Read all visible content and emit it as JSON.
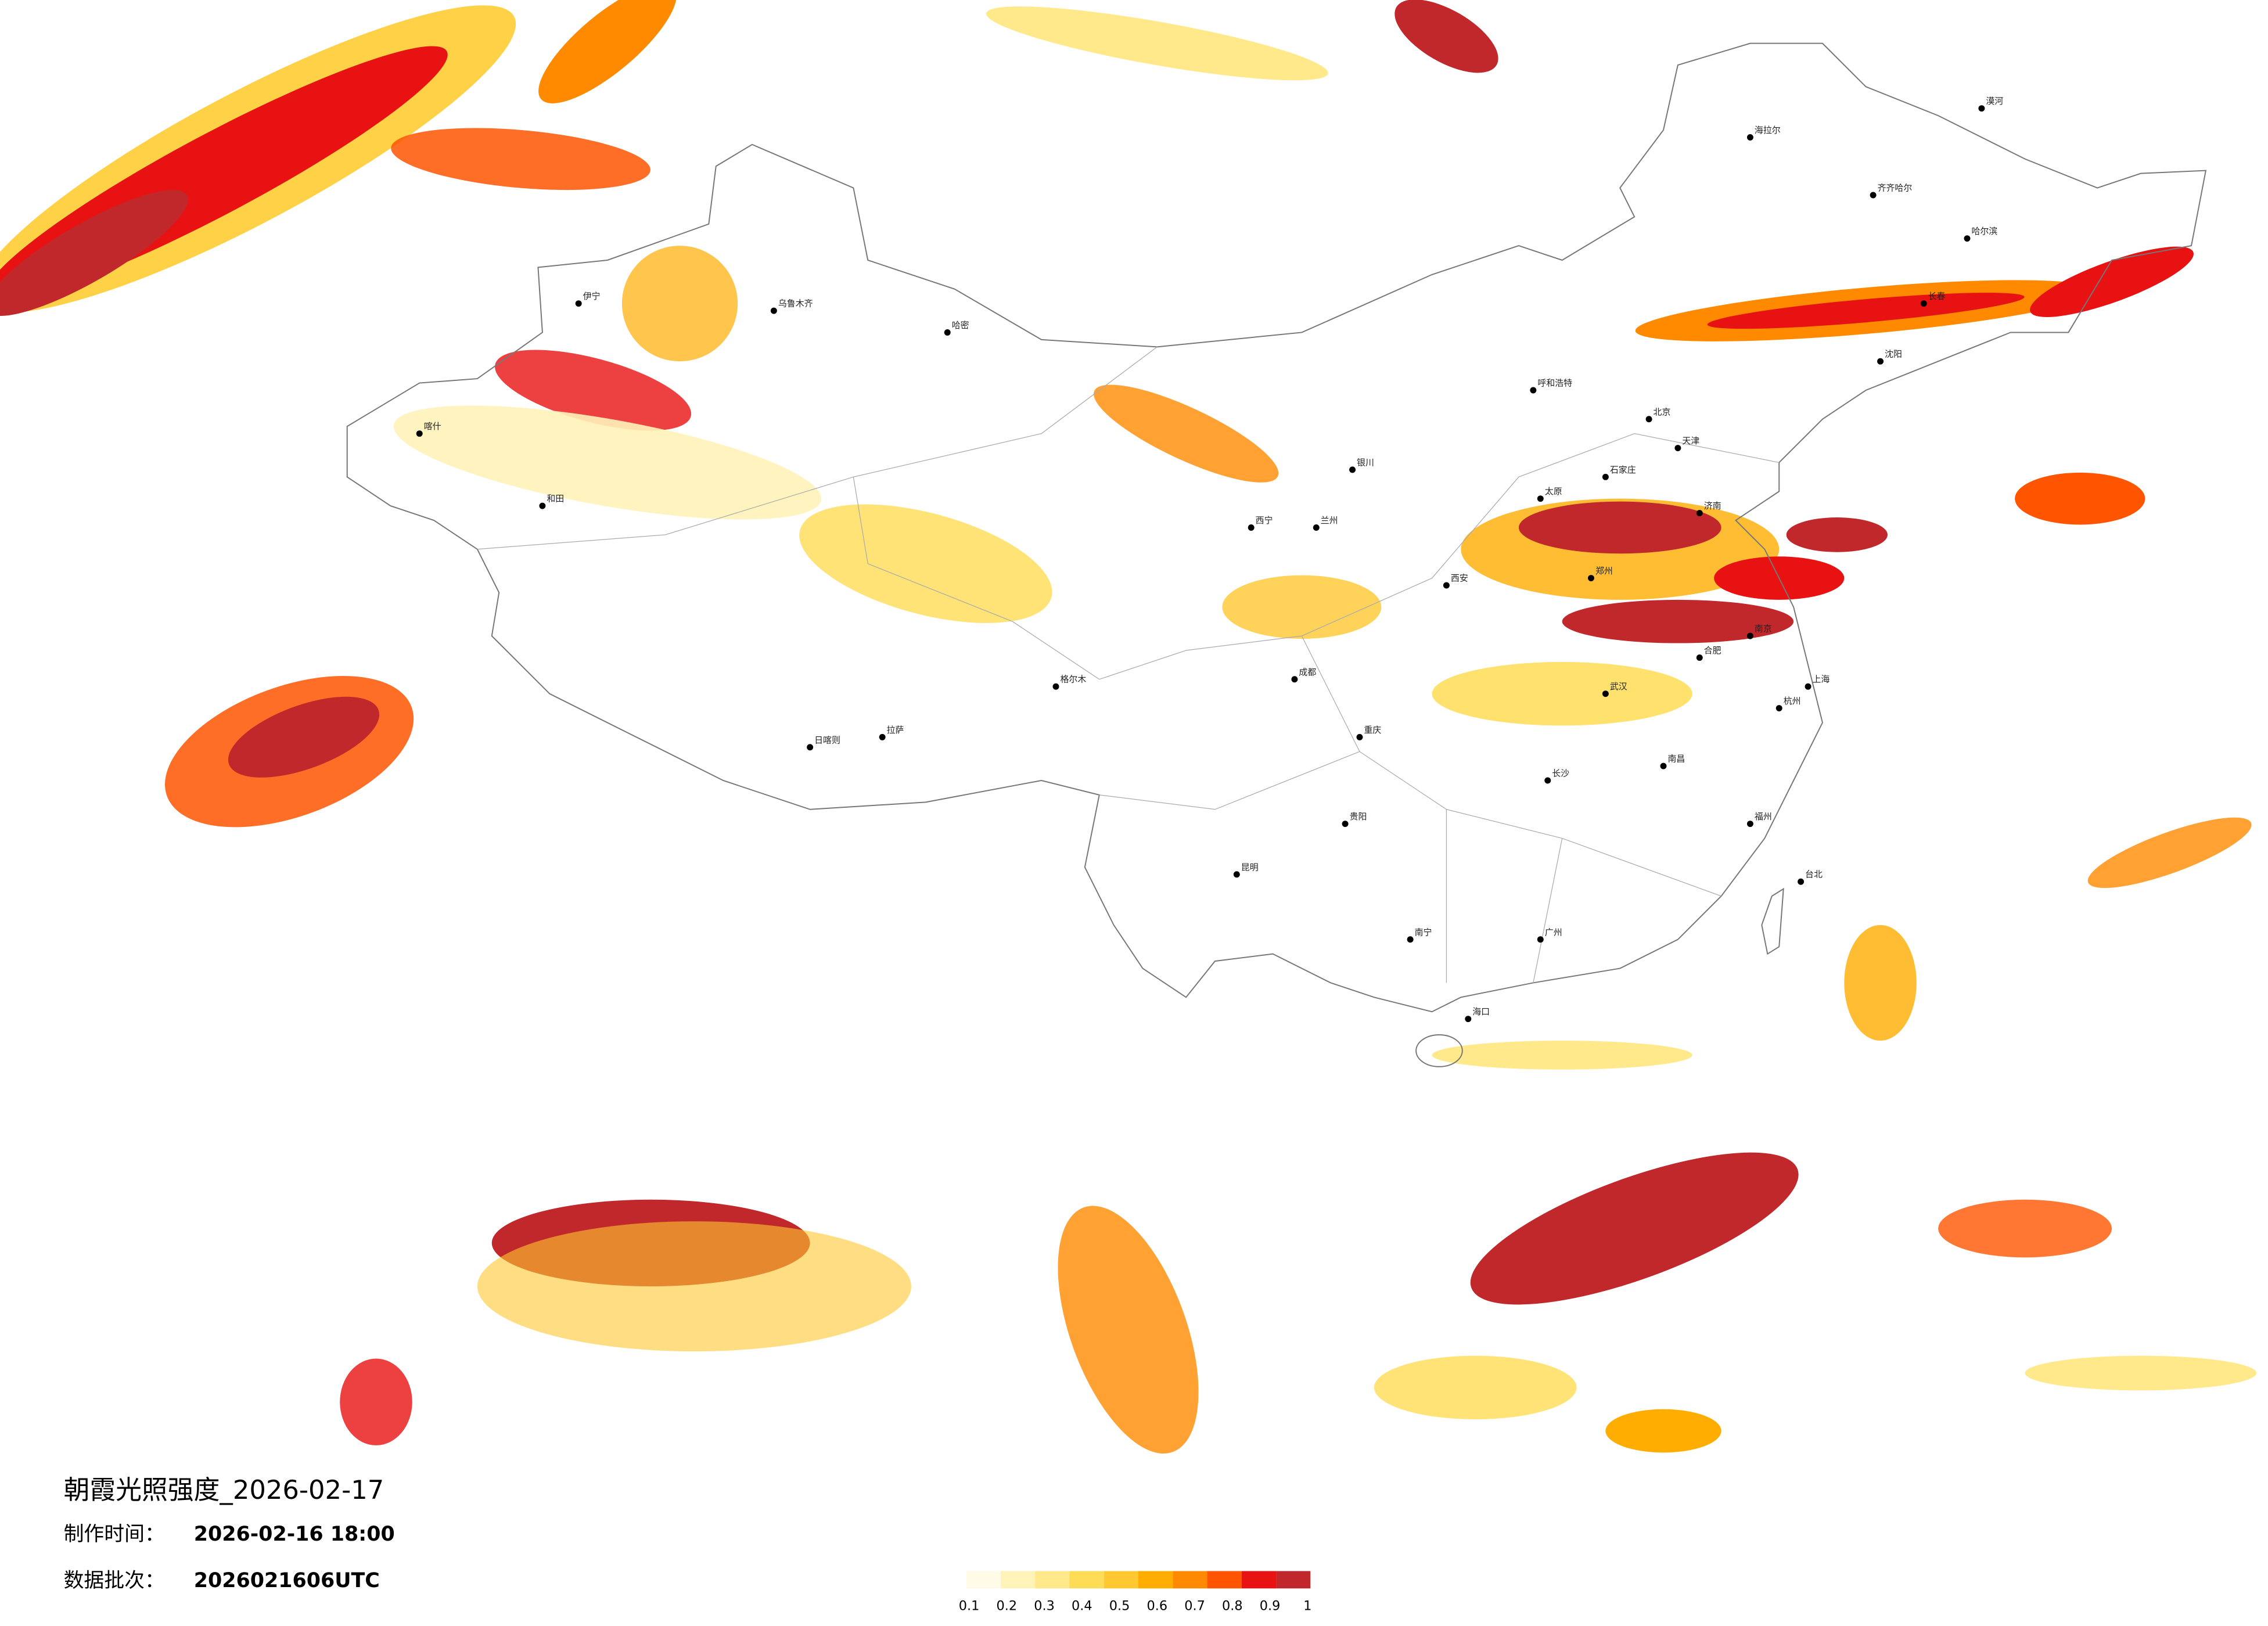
{
  "header": {
    "title": "朝霞光照强度_2026-02-17",
    "made_label": "制作时间：",
    "made_time": "2026-02-16 18:00",
    "batch_label": "数据批次：",
    "batch": "2026021606UTC"
  },
  "legend": {
    "colors": [
      "#fffbe6",
      "#fff3b8",
      "#ffe98a",
      "#ffdc55",
      "#ffc830",
      "#ffad00",
      "#ff8a00",
      "#ff5500",
      "#e81212",
      "#c0282c"
    ],
    "ticks": [
      0.1,
      0.2,
      0.3,
      0.4,
      0.5,
      0.6,
      0.7,
      0.8,
      0.9,
      1
    ]
  },
  "cities": [
    "漠河",
    "海拉尔",
    "齐齐哈尔",
    "哈尔滨",
    "长春",
    "沈阳",
    "北京",
    "天津",
    "石家庄",
    "太原",
    "呼和浩特",
    "济南",
    "郑州",
    "西安",
    "兰州",
    "银川",
    "西宁",
    "武汉",
    "南京",
    "上海",
    "杭州",
    "合肥",
    "南昌",
    "长沙",
    "成都",
    "重庆",
    "贵阳",
    "昆明",
    "南宁",
    "广州",
    "福州",
    "海口",
    "拉萨",
    "日喀则",
    "乌鲁木齐",
    "喀什",
    "和田",
    "伊宁",
    "哈密",
    "台北",
    "格尔木"
  ]
}
